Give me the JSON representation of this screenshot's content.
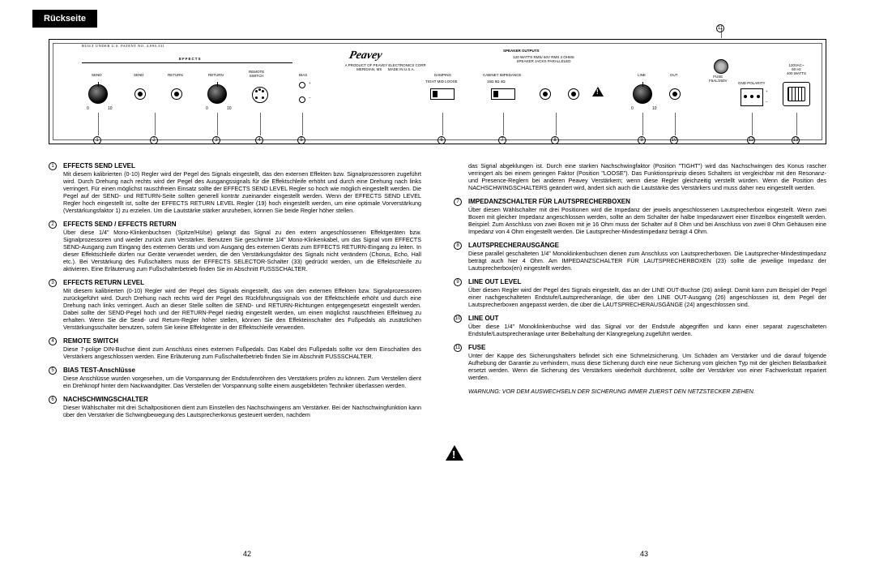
{
  "tab": "Rückseite",
  "diagram": {
    "patent": "BUILT UNDER U.S. PATENT NO. 4,890,331",
    "effects_hdr": "EFFECTS",
    "send": "SEND",
    "send2": "SEND",
    "return": "RETURN",
    "remote": "REMOTE\nSWITCH",
    "bias": "BIAS",
    "logo_sub": "A PRODUCT OF PEAVEY ELECTRONICS CORP.\nMERIDIAN, MS      MADE IN U.S.A.",
    "damping": "DAMPING",
    "damp_opts": "TIGHT  MID  LOOSE",
    "speaker_hdr": "SPEAKER OUTPUTS",
    "speaker_sub": "120 WATTS RMS/ 60V RMS 4 OHMS\nSPEAKER JACKS PARALLELED",
    "cab_imp": "CABINET IMPEDANCE",
    "imp_opts": "16Ω   8Ω   4Ω",
    "line": "LINE",
    "out": "OUT",
    "fuse_lbl": "FUSE\nF5AL/250V",
    "polarity": "GND POLARITY",
    "power_lbl": "120VAC~\n60 Hz\n400 WATTS",
    "knob_0": "0",
    "knob_10": "10",
    "plus": "+",
    "minus": "–"
  },
  "diagram_numbers": [
    "1",
    "2",
    "3",
    "4",
    "5",
    "6",
    "7",
    "8",
    "9",
    "10",
    "11",
    "12",
    "13"
  ],
  "sections_left": [
    {
      "n": "1",
      "t": "EFFECTS SEND LEVEL",
      "b": "Mit diesem kalibrierten (0-10) Regler wird der Pegel des Signals eingestellt, das den externen Effekten bzw. Signalprozessoren zugeführt wird. Durch Drehung nach rechts wird der Pegel des Ausgangssignals für die Effektschleife erhöht und durch eine Drehung nach links verringert. Für einen möglichst rauschfreien Einsatz sollte der EFFECTS SEND LEVEL Regler so hoch wie möglich eingestellt werden. Die Pegel auf der SEND- und RETURN-Seite sollten generell konträr zueinander eingestellt werden. Wenn der EFFECTS SEND LEVEL Regler hoch eingestellt ist, sollte der EFFECTS RETURN LEVEL Regler (19) hoch eingestellt werden, um eine optimale Vorverstärkung (Verstärkungsfaktor 1) zu erzielen. Um die Lautstärke stärker anzuheben, können Sie beide Regler höher stellen."
    },
    {
      "n": "2",
      "t": "EFFECTS SEND / EFFECTS RETURN",
      "b": "Über diese 1/4\" Mono-Klinkenbuchsen (Spitze/Hülse) gelangt das Signal zu den extern angeschlossenen Effektgeräten bzw. Signalprozessoren und wieder zurück zum Verstärker. Benutzen Sie geschirmte 1/4\" Mono-Klinkenkabel, um das Signal vom EFFECTS SEND-Ausgang zum Eingang des externen Geräts und vom Ausgang des externen Geräts zum EFFECTS RETURN-Eingang zu leiten. In dieser Effektschleife dürfen nur Geräte verwendet werden, die den Verstärkungsfaktor des Signals nicht verändern (Chorus, Echo, Hall etc.). Bei Verstärkung des Fußschalters muss der EFFECTS SELECTOR-Schalter (33) gedrückt werden, um die Effektschleife zu aktivieren. Eine Erläuterung zum Fußschalterbetrieb finden Sie im Abschnitt FUSSSCHALTER."
    },
    {
      "n": "3",
      "t": "EFFECTS RETURN LEVEL",
      "b": "Mit diesem kalibrierten (0-10) Regler wird der Pegel des Signals eingestellt, das von den externen Effekten bzw. Signalprozessoren zurückgeführt wird. Durch Drehung nach rechts wird der Pegel des Rückführungssignals von der Effektschleife erhöht und durch eine Drehung nach links verringert. Auch an dieser Stelle sollten die SEND- und RETURN-Richtungen entgegengesetzt eingestellt werden. Dabei sollte der SEND-Pegel hoch und der RETURN-Pegel niedrig eingestellt werden, um einen möglichst rauschfreien Effektweg zu erhalten. Wenn Sie die Send- und Return-Regler höher stellen, können Sie den Effekteinschalter des Fußpedals als zusätzlichen Verstärkungsschalter benutzen, sofern Sie keine Effektgeräte in der Effektschleife verwenden."
    },
    {
      "n": "4",
      "t": "REMOTE SWITCH",
      "b": "Diese 7-polige DIN-Buchse dient zum Anschluss eines externen Fußpedals. Das Kabel des Fußpedals sollte vor dem Einschalten des Verstärkers angeschlossen werden. Eine Erläuterung zum Fußschalterbetrieb finden Sie im Abschnitt FUSSSCHALTER."
    },
    {
      "n": "5",
      "t": "BIAS TEST-Anschlüsse",
      "b": "Diese Anschlüsse wurden vorgesehen, um die Vorspannung der Endstufenröhren des Verstärkers prüfen zu können. Zum Verstellen dient ein Drehknopf hinter dem Nackwandgitter. Das Verstellen der Vorspannung sollte einem ausgebildeten Techniker überlassen werden."
    },
    {
      "n": "6",
      "t": "NACHSCHWINGSCHALTER",
      "b": "Dieser Wählschalter mit drei Schaltpositionen dient zum Einstellen des Nachschwingens am Verstärker. Bei der Nachschwingfunktion kann über den Verstärker die Schwingbewegung des Lautsprecherkonus gesteuert werden, nachdem"
    }
  ],
  "right_continuation": "das Signal abgeklungen ist. Durch eine starken Nachschwingfaktor (Position \"TIGHT\") wird das Nachschwingen des Konus rascher verringert als bei einem geringen Faktor (Position \"LOOSE\"). Das Funktionsprinzip dieses Schalters ist vergleichbar mit den Resonanz- und Presence-Reglern bei anderen Peavey Verstärkern; wenn diese Regler gleichzeitig verstellt würden. Wenn die Position des NACHSCHWINGSCHALTERS geändert wird, ändert sich auch die Lautstärke des Verstärkers und muss daher neu eingestellt werden.",
  "sections_right": [
    {
      "n": "7",
      "t": "IMPEDANZSCHALTER FÜR LAUTSPRECHERBOXEN",
      "b": "Über diesen Wählschalter mit drei Positionen wird die Impedanz der jeweils angeschlossenen Lautsprecherbox eingestellt. Wenn zwei Boxen mit gleicher Impedanz angeschlossen werden, sollte an dem Schalter der halbe Impedanzwert einer Einzelbox eingestellt werden. Beispiel: Zum Anschluss von zwei Boxen mit je 16 Ohm muss der Schalter auf 8 Ohm und bei Anschluss von zwei 8 Ohm Gehäusen eine Impedanz von 4 Ohm eingestellt werden. Die Lautsprecher-Mindestimpedanz beträgt 4 Ohm."
    },
    {
      "n": "8",
      "t": "LAUTSPRECHERAUSGÄNGE",
      "b": "Diese parallel geschalteten 1/4\" Monoklinkenbuchsen dienen zum Anschluss von Lautsprecherboxen. Die Lautsprecher-Mindestimpedanz beträgt auch hier 4 Ohm. Am IMPEDANZSCHALTER FÜR LAUTSPRECHERBOXEN (23) sollte die jeweilige Impedanz der Lautsprecherbox(en) eingestellt werden."
    },
    {
      "n": "9",
      "t": "LINE OUT LEVEL",
      "b": "Über diesen Regler wird der Pegel des Signals eingestellt, das an der LINE OUT-Buchse (26) anliegt. Damit kann zum Beispiel der Pegel einer nachgeschalteten Endstufe/Lautsprecheranlage, die über den LINE OUT-Ausgang (26) angeschlossen ist, dem Pegel der Lautsprecherboxen angepasst werden, die über die LAUTSPRECHERAUSGÄNGE (24) angeschlossen sind."
    },
    {
      "n": "10",
      "t": "LINE OUT",
      "b": "Über diese 1/4\" Monoklinkenbuchse wird das Signal vor der Endstufe abgegriffen und kann einer separat zugeschalteten Endstufe/Lautsprecheranlage unter Beibehaltung der Klangregelung zugeführt werden."
    },
    {
      "n": "11",
      "t": "FUSE",
      "b": "Unter der Kappe des Sicherungshalters befindet sich eine Schmelzsicherung. Um Schäden am Verstärker und die darauf folgende Aufhebung der Garantie zu verhindern, muss diese Sicherung durch eine neue Sicherung vom gleichen Typ mit der gleichen Belastbarkeit ersetzt werden. Wenn die Sicherung des Verstärkers wiederholt durchbrennt, sollte der Verstärker von einer Fachwerkstatt repariert werden."
    }
  ],
  "warning": "WARNUNG: VOR DEM AUSWECHSELN DER SICHERUNG IMMER ZUERST DEN NETZSTECKER ZIEHEN.",
  "page_left": "42",
  "page_right": "43"
}
